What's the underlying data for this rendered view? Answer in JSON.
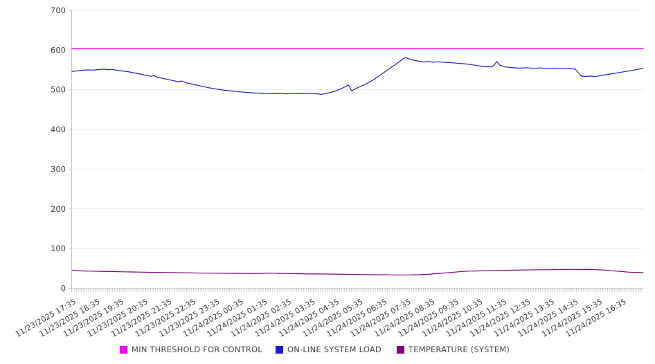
{
  "chart_data": {
    "type": "line",
    "title": "",
    "xlabel": "",
    "ylabel": "",
    "grid": true,
    "legend_position": "bottom",
    "y_axis": {
      "min": 0,
      "max": 700,
      "ticks": [
        0,
        100,
        200,
        300,
        400,
        500,
        600,
        700
      ]
    },
    "x_axis": {
      "labels": [
        "11/23/2025 17:35",
        "11/23/2025 18:35",
        "11/23/2025 19:35",
        "11/23/2025 20:35",
        "11/23/2025 21:35",
        "11/23/2025 22:35",
        "11/23/2025 23:35",
        "11/24/2025 00:35",
        "11/24/2025 01:35",
        "11/24/2025 02:35",
        "11/24/2025 03:35",
        "11/24/2025 04:35",
        "11/24/2025 05:35",
        "11/24/2025 06:35",
        "11/24/2025 07:35",
        "11/24/2025 08:35",
        "11/24/2025 09:35",
        "11/24/2025 10:35",
        "11/24/2025 11:35",
        "11/24/2025 12:35",
        "11/24/2025 13:35",
        "11/24/2025 14:35",
        "11/24/2025 15:35",
        "11/24/2025 16:35"
      ],
      "minor_ticks_per_hour": 10,
      "label_rotation_deg": -30
    },
    "colors": {
      "grid": "#ebebeb",
      "axis": "#c6c6c6",
      "minor_tick": "#c4c4c4",
      "tick_label": "#3f3f3f",
      "legend_text": "#474747"
    },
    "series": [
      {
        "name": "MIN THRESHOLD FOR CONTROL",
        "color": "#ee0aee",
        "style": "threshold",
        "value": 603.5
      },
      {
        "name": "ON-LINE SYSTEM LOAD",
        "color": "#1c1ccc",
        "style": "line",
        "points": [
          [
            0,
            546
          ],
          [
            0.2,
            547.5
          ],
          [
            0.45,
            549
          ],
          [
            0.7,
            550
          ],
          [
            0.9,
            549.5
          ],
          [
            1.1,
            551
          ],
          [
            1.35,
            552
          ],
          [
            1.5,
            550.5
          ],
          [
            1.7,
            551.5
          ],
          [
            1.9,
            549
          ],
          [
            2.1,
            547.5
          ],
          [
            2.4,
            545
          ],
          [
            2.7,
            541.5
          ],
          [
            3.0,
            538
          ],
          [
            3.3,
            534
          ],
          [
            3.45,
            535.5
          ],
          [
            3.6,
            531
          ],
          [
            3.9,
            527.5
          ],
          [
            4.2,
            523.5
          ],
          [
            4.45,
            520.5
          ],
          [
            4.6,
            522
          ],
          [
            4.8,
            517.5
          ],
          [
            5.1,
            513.5
          ],
          [
            5.4,
            509.5
          ],
          [
            5.7,
            505.5
          ],
          [
            6.0,
            502.5
          ],
          [
            6.3,
            499.5
          ],
          [
            6.6,
            497.5
          ],
          [
            6.9,
            495.5
          ],
          [
            7.2,
            494
          ],
          [
            7.5,
            492.5
          ],
          [
            7.8,
            491.5
          ],
          [
            8.1,
            490.5
          ],
          [
            8.4,
            490
          ],
          [
            8.7,
            491
          ],
          [
            9.0,
            489.5
          ],
          [
            9.3,
            491
          ],
          [
            9.6,
            490
          ],
          [
            9.9,
            491.5
          ],
          [
            10.2,
            490
          ],
          [
            10.45,
            488.5
          ],
          [
            10.65,
            491
          ],
          [
            10.9,
            494.5
          ],
          [
            11.1,
            498.5
          ],
          [
            11.3,
            503.5
          ],
          [
            11.45,
            508
          ],
          [
            11.58,
            512
          ],
          [
            11.7,
            497.5
          ],
          [
            11.85,
            502
          ],
          [
            12.0,
            506.5
          ],
          [
            12.3,
            514.5
          ],
          [
            12.6,
            524.5
          ],
          [
            12.9,
            537
          ],
          [
            13.2,
            549.5
          ],
          [
            13.45,
            560
          ],
          [
            13.7,
            571
          ],
          [
            13.85,
            578
          ],
          [
            13.97,
            581
          ],
          [
            14.1,
            578
          ],
          [
            14.3,
            574.5
          ],
          [
            14.5,
            572
          ],
          [
            14.7,
            570
          ],
          [
            14.9,
            571.5
          ],
          [
            15.1,
            569.5
          ],
          [
            15.3,
            570.5
          ],
          [
            15.55,
            569
          ],
          [
            15.8,
            568.5
          ],
          [
            16.1,
            567
          ],
          [
            16.4,
            565.5
          ],
          [
            16.7,
            563.5
          ],
          [
            16.95,
            561
          ],
          [
            17.15,
            559
          ],
          [
            17.35,
            558
          ],
          [
            17.55,
            557.5
          ],
          [
            17.68,
            563
          ],
          [
            17.77,
            571.5
          ],
          [
            17.9,
            562
          ],
          [
            18.1,
            557.5
          ],
          [
            18.4,
            556
          ],
          [
            18.7,
            554.5
          ],
          [
            19.0,
            555.5
          ],
          [
            19.3,
            554
          ],
          [
            19.6,
            555
          ],
          [
            19.9,
            553.5
          ],
          [
            20.2,
            554.5
          ],
          [
            20.5,
            553
          ],
          [
            20.8,
            554
          ],
          [
            21.05,
            552
          ],
          [
            21.15,
            545
          ],
          [
            21.3,
            534.5
          ],
          [
            21.5,
            533.5
          ],
          [
            21.7,
            534.5
          ],
          [
            21.9,
            533
          ],
          [
            22.1,
            536
          ],
          [
            22.4,
            538.5
          ],
          [
            22.7,
            541.5
          ],
          [
            23.0,
            544.5
          ],
          [
            23.3,
            547.5
          ],
          [
            23.6,
            550.5
          ],
          [
            23.9,
            554
          ]
        ]
      },
      {
        "name": "TEMPERATURE (SYSTEM)",
        "color": "#7a067a",
        "style": "line",
        "points": [
          [
            0,
            45
          ],
          [
            0.4,
            43.5
          ],
          [
            0.8,
            43
          ],
          [
            1.2,
            42.5
          ],
          [
            1.6,
            42
          ],
          [
            2.0,
            41.5
          ],
          [
            2.5,
            41
          ],
          [
            3.0,
            40.5
          ],
          [
            3.5,
            40
          ],
          [
            4.0,
            39.5
          ],
          [
            4.5,
            39
          ],
          [
            5.0,
            38.5
          ],
          [
            5.5,
            38
          ],
          [
            6.0,
            38
          ],
          [
            6.5,
            37.5
          ],
          [
            7.0,
            37.5
          ],
          [
            7.5,
            37
          ],
          [
            8.0,
            37.5
          ],
          [
            8.35,
            38
          ],
          [
            8.6,
            37.5
          ],
          [
            9.0,
            37
          ],
          [
            9.5,
            36.5
          ],
          [
            10.0,
            36
          ],
          [
            10.5,
            36
          ],
          [
            11.0,
            35.5
          ],
          [
            11.5,
            35
          ],
          [
            12.0,
            34.5
          ],
          [
            12.5,
            34
          ],
          [
            13.0,
            34
          ],
          [
            13.5,
            33.5
          ],
          [
            14.0,
            33.5
          ],
          [
            14.5,
            34
          ],
          [
            15.0,
            35.5
          ],
          [
            15.4,
            37.5
          ],
          [
            15.8,
            39.5
          ],
          [
            16.2,
            41.5
          ],
          [
            16.6,
            43
          ],
          [
            17.0,
            43.5
          ],
          [
            17.5,
            44.5
          ],
          [
            18.0,
            45
          ],
          [
            18.5,
            45.5
          ],
          [
            19.0,
            46
          ],
          [
            19.5,
            46.5
          ],
          [
            20.0,
            46.5
          ],
          [
            20.15,
            47.5
          ],
          [
            20.3,
            46.5
          ],
          [
            20.6,
            47.5
          ],
          [
            21.0,
            47.5
          ],
          [
            21.5,
            47
          ],
          [
            22.0,
            46.5
          ],
          [
            22.3,
            45.5
          ],
          [
            22.6,
            44
          ],
          [
            23.0,
            42
          ],
          [
            23.3,
            40.5
          ],
          [
            23.6,
            40
          ],
          [
            23.9,
            39.5
          ]
        ]
      }
    ]
  }
}
